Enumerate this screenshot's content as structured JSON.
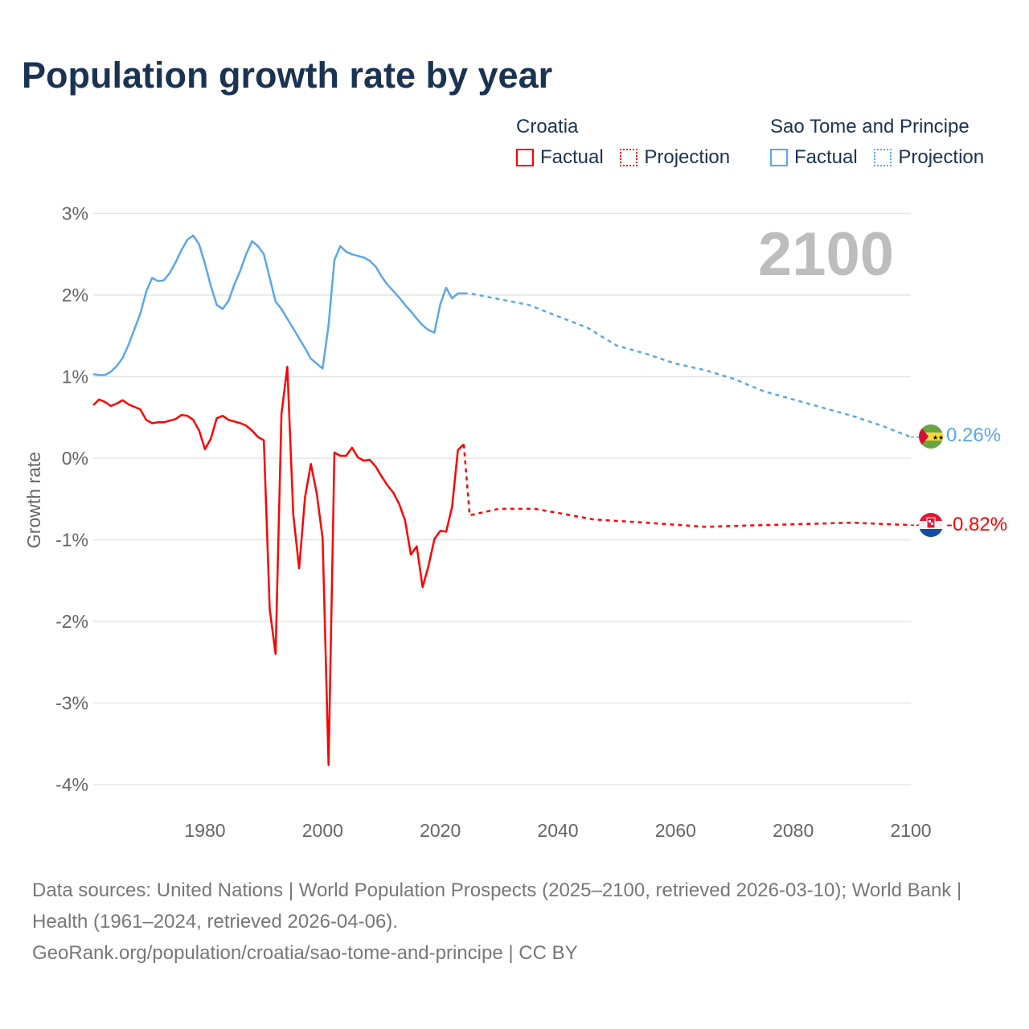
{
  "title": "Population growth rate by year",
  "legend": {
    "groups": [
      {
        "country": "Croatia",
        "factual": "Factual",
        "projection": "Projection",
        "color": "#ff0000"
      },
      {
        "country": "Sao Tome and Principe",
        "factual": "Factual",
        "projection": "Projection",
        "color": "#5aa7ee"
      }
    ]
  },
  "year_label": "2100",
  "end_labels": {
    "croatia": "-0.82%",
    "sao_tome": "0.26%"
  },
  "footer": {
    "sources": "Data sources: United Nations | World Population Prospects (2025–2100, retrieved 2026-03-10); World Bank | Health (1961–2024, retrieved 2026-04-06).",
    "link": "GeoRank.org/population/croatia/sao-tome-and-principe | CC BY"
  },
  "chart_data": {
    "type": "line",
    "title": "Population growth rate by year",
    "xlabel": "",
    "ylabel": "Growth rate",
    "xlim": [
      1961,
      2100
    ],
    "ylim": [
      -4,
      3
    ],
    "x_ticks": [
      "1980",
      "2000",
      "2020",
      "2040",
      "2060",
      "2080",
      "2100"
    ],
    "x_tick_values": [
      1980,
      2000,
      2020,
      2040,
      2060,
      2080,
      2100
    ],
    "y_ticks": [
      "3%",
      "2%",
      "1%",
      "0%",
      "-1%",
      "-2%",
      "-3%",
      "-4%"
    ],
    "y_tick_values": [
      3,
      2,
      1,
      0,
      -1,
      -2,
      -3,
      -4
    ],
    "grid": true,
    "legend_position": "top-right",
    "series": [
      {
        "name": "Croatia Factual",
        "color": "#ff0000",
        "style": "solid",
        "x_start": 1961,
        "values": [
          0.65,
          0.72,
          0.69,
          0.64,
          0.67,
          0.71,
          0.66,
          0.63,
          0.6,
          0.47,
          0.43,
          0.44,
          0.44,
          0.46,
          0.48,
          0.53,
          0.52,
          0.47,
          0.34,
          0.11,
          0.24,
          0.49,
          0.52,
          0.47,
          0.45,
          0.43,
          0.4,
          0.34,
          0.26,
          0.22,
          -1.85,
          -2.4,
          0.54,
          1.12,
          -0.69,
          -1.35,
          -0.48,
          -0.07,
          -0.43,
          -0.98,
          -3.76,
          0.07,
          0.03,
          0.03,
          0.13,
          0.01,
          -0.03,
          -0.02,
          -0.1,
          -0.22,
          -0.33,
          -0.42,
          -0.56,
          -0.76,
          -1.18,
          -1.08,
          -1.58,
          -1.32,
          -0.99,
          -0.89,
          -0.9,
          -0.6,
          0.1,
          0.17
        ]
      },
      {
        "name": "Croatia Projection",
        "color": "#ff0000",
        "style": "dotted",
        "x": [
          2024,
          2025,
          2030,
          2036,
          2040,
          2046,
          2055,
          2065,
          2070,
          2080,
          2090,
          2100
        ],
        "values": [
          0.17,
          -0.7,
          -0.62,
          -0.62,
          -0.67,
          -0.75,
          -0.79,
          -0.84,
          -0.83,
          -0.81,
          -0.79,
          -0.82
        ]
      },
      {
        "name": "Sao Tome and Principe Factual",
        "color": "#5aa7ee",
        "style": "solid",
        "x_start": 1961,
        "values": [
          1.03,
          1.02,
          1.02,
          1.06,
          1.13,
          1.23,
          1.39,
          1.58,
          1.77,
          2.04,
          2.21,
          2.17,
          2.18,
          2.27,
          2.4,
          2.55,
          2.68,
          2.73,
          2.62,
          2.38,
          2.11,
          1.88,
          1.83,
          1.93,
          2.13,
          2.3,
          2.5,
          2.66,
          2.6,
          2.5,
          2.21,
          1.92,
          1.83,
          1.71,
          1.59,
          1.47,
          1.35,
          1.22,
          1.16,
          1.1,
          1.63,
          2.43,
          2.6,
          2.53,
          2.5,
          2.48,
          2.46,
          2.42,
          2.35,
          2.23,
          2.13,
          2.05,
          1.97,
          1.88,
          1.8,
          1.71,
          1.63,
          1.57,
          1.54,
          1.89,
          2.09,
          1.96,
          2.02,
          2.02
        ]
      },
      {
        "name": "Sao Tome and Principe Projection",
        "color": "#5aa7ee",
        "style": "dotted",
        "x": [
          2024,
          2025,
          2030,
          2035,
          2040,
          2045,
          2050,
          2055,
          2060,
          2065,
          2070,
          2075,
          2080,
          2085,
          2090,
          2095,
          2100
        ],
        "values": [
          2.02,
          2.02,
          1.95,
          1.88,
          1.74,
          1.6,
          1.38,
          1.28,
          1.16,
          1.08,
          0.97,
          0.82,
          0.72,
          0.62,
          0.52,
          0.4,
          0.26
        ]
      }
    ]
  }
}
